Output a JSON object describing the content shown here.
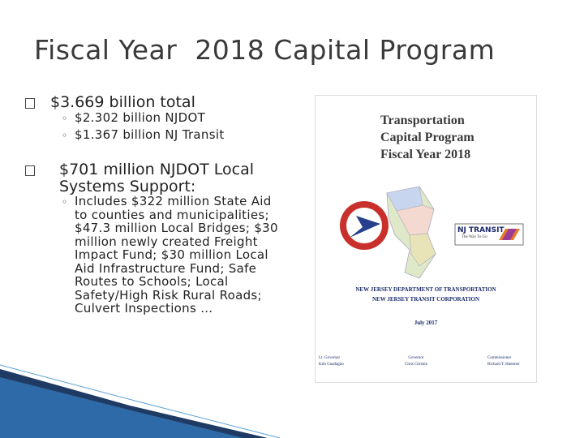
{
  "header": {
    "title": "Fiscal Year  2018 Capital Program"
  },
  "bullets": [
    {
      "text": "$3.669 billion total",
      "subs": [
        "$2.302 billion NJDOT",
        "$1.367 billion NJ Transit"
      ]
    },
    {
      "text": "$701 million NJDOT Local Systems Support:",
      "subs": [
        "Includes $322 million State Aid to counties and municipalities; $47.3 million Local Bridges; $30 million newly created Freight Impact Fund; $30 million Local Aid Infrastructure Fund; Safe Routes to Schools; Local Safety/High Risk Rural Roads; Culvert Inspections …"
      ]
    }
  ],
  "cover": {
    "title_lines": [
      "Transportation",
      "Capital Program",
      "Fiscal Year 2018"
    ],
    "transit_logo": {
      "name": "NJ TRANSIT",
      "tagline": "The Way To Go"
    },
    "agencies": [
      "NEW JERSEY DEPARTMENT OF TRANSPORTATION",
      "NEW JERSEY TRANSIT CORPORATION"
    ],
    "date": "July 2017",
    "officials": [
      {
        "role": "Lt. Governor",
        "name": "Kim Guadagno"
      },
      {
        "role": "Governor",
        "name": "Chris Christie"
      },
      {
        "role": "Commissioner",
        "name": "Richard T. Hammer"
      }
    ]
  }
}
